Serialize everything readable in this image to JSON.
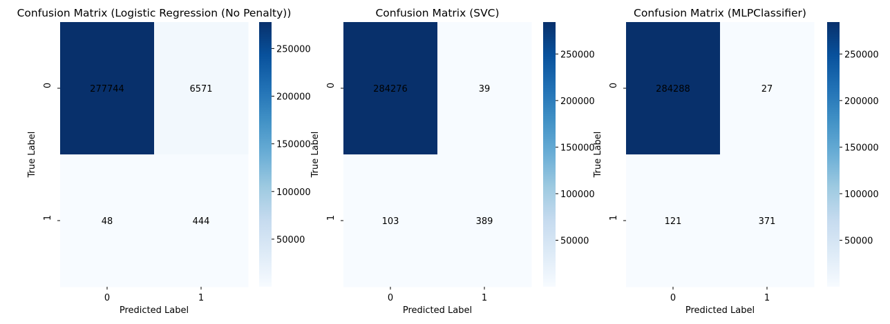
{
  "chart_data": [
    {
      "type": "heatmap",
      "title": "Confusion Matrix (Logistic Regression (No Penalty))",
      "xlabel": "Predicted Label",
      "ylabel": "True Label",
      "x_categories": [
        "0",
        "1"
      ],
      "y_categories": [
        "0",
        "1"
      ],
      "values": [
        [
          277744,
          6571
        ],
        [
          48,
          444
        ]
      ],
      "value_labels": [
        [
          "277744",
          "6571"
        ],
        [
          "48",
          "444"
        ]
      ],
      "colormap": "Blues",
      "colorbar": {
        "range": [
          48,
          277744
        ],
        "ticks": [
          50000,
          100000,
          150000,
          200000,
          250000
        ],
        "tick_labels": [
          "50000",
          "100000",
          "150000",
          "200000",
          "250000"
        ]
      }
    },
    {
      "type": "heatmap",
      "title": "Confusion Matrix (SVC)",
      "xlabel": "Predicted Label",
      "ylabel": "True Label",
      "x_categories": [
        "0",
        "1"
      ],
      "y_categories": [
        "0",
        "1"
      ],
      "values": [
        [
          284276,
          39
        ],
        [
          103,
          389
        ]
      ],
      "value_labels": [
        [
          "284276",
          "39"
        ],
        [
          "103",
          "389"
        ]
      ],
      "colormap": "Blues",
      "colorbar": {
        "range": [
          39,
          284276
        ],
        "ticks": [
          50000,
          100000,
          150000,
          200000,
          250000
        ],
        "tick_labels": [
          "50000",
          "100000",
          "150000",
          "200000",
          "250000"
        ]
      }
    },
    {
      "type": "heatmap",
      "title": "Confusion Matrix (MLPClassifier)",
      "xlabel": "Predicted Label",
      "ylabel": "True Label",
      "x_categories": [
        "0",
        "1"
      ],
      "y_categories": [
        "0",
        "1"
      ],
      "values": [
        [
          284288,
          27
        ],
        [
          121,
          371
        ]
      ],
      "value_labels": [
        [
          "284288",
          "27"
        ],
        [
          "121",
          "371"
        ]
      ],
      "colormap": "Blues",
      "colorbar": {
        "range": [
          27,
          284288
        ],
        "ticks": [
          50000,
          100000,
          150000,
          200000,
          250000
        ],
        "tick_labels": [
          "50000",
          "100000",
          "150000",
          "200000",
          "250000"
        ]
      }
    }
  ]
}
